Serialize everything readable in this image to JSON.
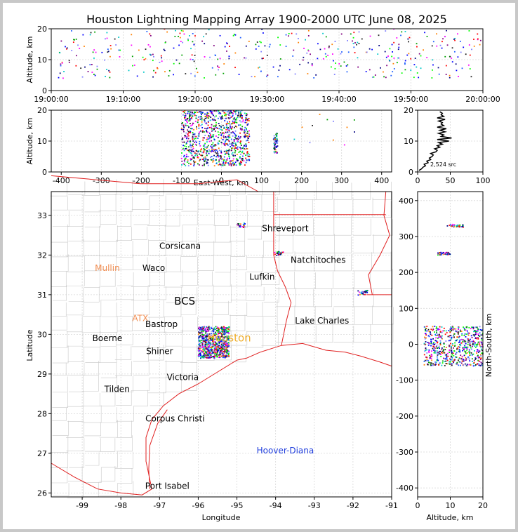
{
  "title": "Houston Lightning Mapping Array 1900-2000 UTC June 08, 2025",
  "colors": {
    "state_border": "#e02020",
    "county_border": "#c8c8c8",
    "grid": "#d8d8d8",
    "frame": "#c8c8c8"
  },
  "chart_data": [
    {
      "id": "time-altitude",
      "type": "scatter",
      "ylabel": "Altitude, km",
      "ylim": [
        0,
        20
      ],
      "yticks": [
        "0",
        "10",
        "20"
      ],
      "xlim_label": [
        "19:00:00",
        "20:00:00"
      ],
      "xticks": [
        "19:00:00",
        "19:10:00",
        "19:20:00",
        "19:30:00",
        "19:40:00",
        "19:50:00",
        "20:00:00"
      ],
      "color_by": "time",
      "points_note": "VHF source points colored by time"
    },
    {
      "id": "east-west-altitude",
      "type": "scatter",
      "xlabel": "East-West, km",
      "ylabel": "Altitude, km",
      "xlim": [
        -425,
        425
      ],
      "ylim": [
        0,
        20
      ],
      "xticks": [
        "-400",
        "-300",
        "-200",
        "-100",
        "0",
        "100",
        "200",
        "300",
        "400"
      ],
      "yticks": [
        "0",
        "10",
        "20"
      ],
      "clusters": [
        {
          "x_min": -100,
          "x_max": 70,
          "alt_min": 2,
          "alt_max": 20
        },
        {
          "x_min": 130,
          "x_max": 140,
          "alt_min": 6,
          "alt_max": 13
        }
      ]
    },
    {
      "id": "altitude-histogram",
      "type": "line",
      "xlim": [
        0,
        100
      ],
      "ylim": [
        0,
        20
      ],
      "xticks": [
        "0",
        "50",
        "100"
      ],
      "yticks": [
        "0",
        "10",
        "20"
      ],
      "annotation": "2,524 src",
      "altitude_km": [
        0.5,
        1,
        1.5,
        2,
        2.5,
        3,
        3.5,
        4,
        4.5,
        5,
        5.5,
        6,
        6.5,
        7,
        7.5,
        8,
        8.5,
        9,
        9.5,
        10,
        10.5,
        11,
        11.5,
        12,
        12.5,
        13,
        13.5,
        14,
        14.5,
        15,
        15.5,
        16,
        16.5,
        17,
        17.5,
        18,
        18.5,
        19,
        19.5
      ],
      "count": [
        2,
        6,
        8,
        12,
        10,
        16,
        14,
        20,
        18,
        22,
        24,
        20,
        28,
        30,
        26,
        34,
        30,
        38,
        32,
        48,
        30,
        52,
        36,
        40,
        32,
        42,
        34,
        44,
        30,
        40,
        36,
        38,
        32,
        42,
        30,
        40,
        36,
        38,
        34
      ]
    },
    {
      "id": "plan-view-map",
      "type": "scatter",
      "xlabel": "Longitude",
      "ylabel": "Latitude",
      "xlim": [
        -99.8,
        -91
      ],
      "ylim": [
        25.9,
        33.6
      ],
      "xticks": [
        "-99",
        "-98",
        "-97",
        "-96",
        "-95",
        "-94",
        "-93",
        "-92",
        "-91"
      ],
      "yticks": [
        "26",
        "27",
        "28",
        "29",
        "30",
        "31",
        "32",
        "33"
      ],
      "cities": [
        {
          "name": "Shreveport",
          "lon": -93.75,
          "lat": 32.6
        },
        {
          "name": "Corsicana",
          "lon": -96.47,
          "lat": 32.16
        },
        {
          "name": "Mullin",
          "lon": -98.35,
          "lat": 31.6
        },
        {
          "name": "Waco",
          "lon": -97.15,
          "lat": 31.6
        },
        {
          "name": "Natchitoches",
          "lon": -92.9,
          "lat": 31.8
        },
        {
          "name": "Lufkin",
          "lon": -94.35,
          "lat": 31.38
        },
        {
          "name": "BCS",
          "lon": -96.35,
          "lat": 30.75
        },
        {
          "name": "ATX",
          "lon": -97.5,
          "lat": 30.33
        },
        {
          "name": "Bastrop",
          "lon": -96.95,
          "lat": 30.18
        },
        {
          "name": "Lake Charles",
          "lon": -92.8,
          "lat": 30.27
        },
        {
          "name": "Boerne",
          "lon": -98.35,
          "lat": 29.83
        },
        {
          "name": "Houston",
          "lon": -95.2,
          "lat": 29.82
        },
        {
          "name": "Shiner",
          "lon": -97.0,
          "lat": 29.5
        },
        {
          "name": "Victoria",
          "lon": -96.4,
          "lat": 28.85
        },
        {
          "name": "Tilden",
          "lon": -98.1,
          "lat": 28.55
        },
        {
          "name": "Corpus Christi",
          "lon": -96.6,
          "lat": 27.8
        },
        {
          "name": "Hoover-Diana",
          "lon": -93.75,
          "lat": 27.0
        },
        {
          "name": "Port Isabel",
          "lon": -96.8,
          "lat": 26.1
        }
      ],
      "city_colors": {
        "Mullin": "#f08c50",
        "ATX": "#f08c50",
        "Houston": "#f0b030",
        "Hoover-Diana": "#1e3cdc",
        "default": "#000000"
      },
      "clusters": [
        {
          "lon_min": -96.0,
          "lon_max": -95.2,
          "lat_min": 29.4,
          "lat_max": 30.2
        },
        {
          "lon": -94.9,
          "lat": 32.75
        },
        {
          "lon": -93.9,
          "lat": 32.05
        },
        {
          "lon": -91.75,
          "lat": 31.05
        }
      ]
    },
    {
      "id": "altitude-north-south",
      "type": "scatter",
      "xlabel": "Altitude, km",
      "ylabel": "North-South, km",
      "xlim": [
        0,
        20
      ],
      "ylim": [
        -425,
        425
      ],
      "xticks": [
        "0",
        "10",
        "20"
      ],
      "yticks": [
        "-400",
        "-300",
        "-200",
        "-100",
        "0",
        "100",
        "200",
        "300",
        "400"
      ],
      "clusters": [
        {
          "alt_min": 9,
          "alt_max": 14,
          "ns": 330
        },
        {
          "alt_min": 6,
          "alt_max": 10,
          "ns": 252
        },
        {
          "alt_min": 2,
          "alt_max": 20,
          "ns_min": -60,
          "ns_max": 50
        }
      ]
    }
  ]
}
